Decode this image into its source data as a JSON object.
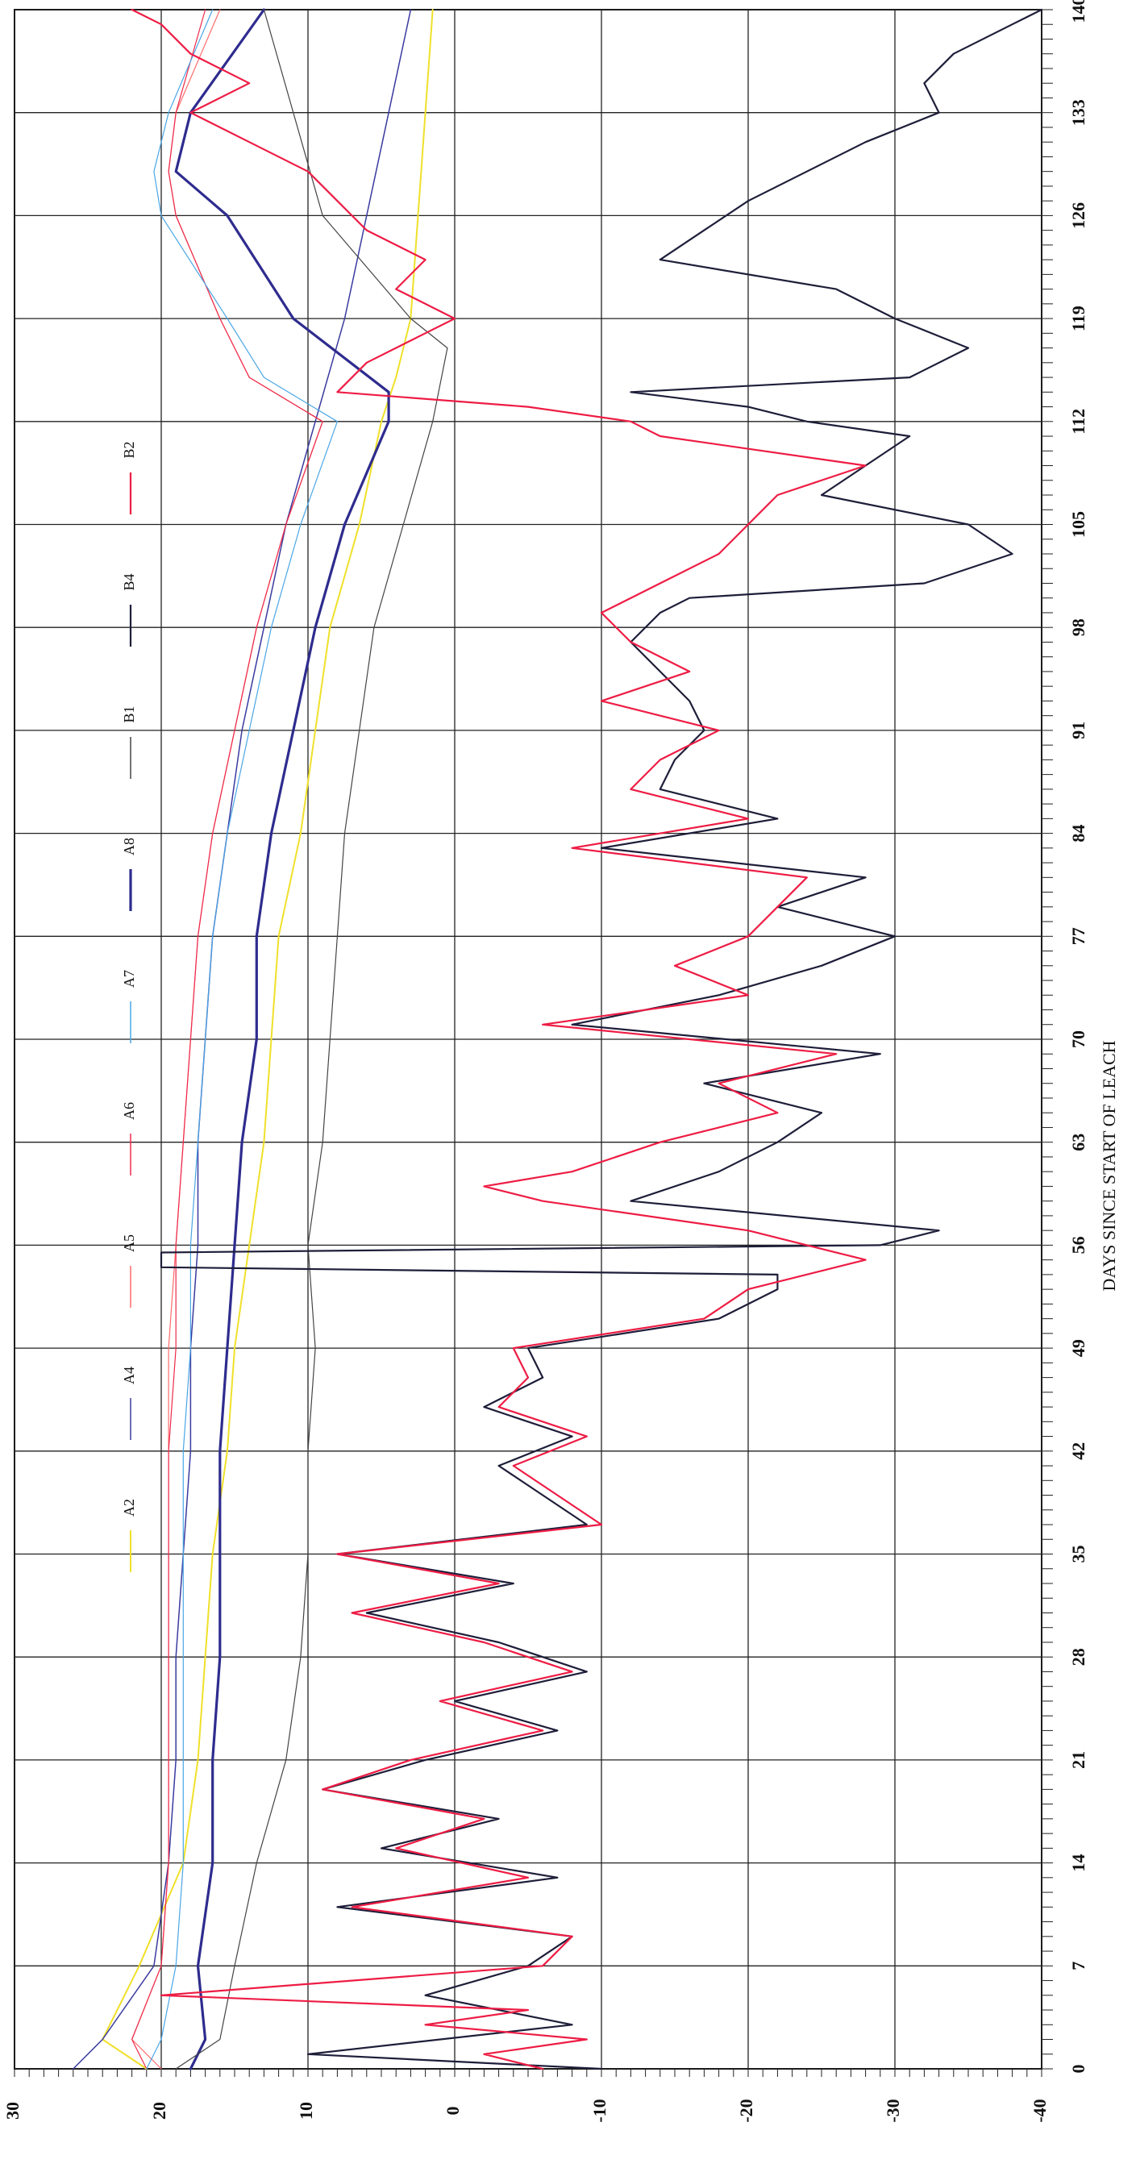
{
  "chart_data": {
    "type": "line",
    "orientation": "rotated-90",
    "xlabel": "DAYS SINCE START OF LEACH",
    "ylabel": "",
    "xlim": [
      0,
      140
    ],
    "ylim": [
      -40,
      30
    ],
    "x_ticks": [
      "0",
      "7",
      "14",
      "21",
      "28",
      "35",
      "42",
      "49",
      "56",
      "63",
      "70",
      "77",
      "84",
      "91",
      "98",
      "105",
      "112",
      "119",
      "126",
      "133",
      "140"
    ],
    "y_ticks": [
      "30",
      "20",
      "10",
      "0",
      "-10",
      "-20",
      "-30",
      "-40"
    ],
    "grid": true,
    "legend": "left",
    "series": [
      {
        "name": "A2",
        "color": "#f0e02a",
        "stroke": 2,
        "x": [
          0,
          2,
          7,
          14,
          21,
          28,
          35,
          42,
          49,
          56,
          63,
          70,
          77,
          84,
          91,
          98,
          105,
          112,
          115,
          119,
          126,
          133,
          140
        ],
        "y": [
          21,
          24,
          21.5,
          18.5,
          17.5,
          17,
          16.5,
          15.5,
          15,
          14,
          13,
          12.5,
          12,
          10.5,
          9.5,
          8.5,
          6.5,
          5,
          4,
          3,
          2.5,
          2,
          1.5
        ]
      },
      {
        "name": "A4",
        "color": "#3a3aa0",
        "stroke": 1.5,
        "x": [
          0,
          2,
          7,
          14,
          21,
          28,
          35,
          42,
          49,
          56,
          63,
          70,
          77,
          84,
          91,
          98,
          105,
          112,
          119,
          126,
          133,
          140
        ],
        "y": [
          26,
          24,
          20.5,
          19.5,
          19,
          19,
          18.5,
          18,
          18,
          17.5,
          17.5,
          17,
          16.5,
          15.5,
          14.5,
          13,
          11.5,
          9.5,
          7.5,
          6,
          4.5,
          3
        ]
      },
      {
        "name": "A5",
        "color": "#ff6a6a",
        "stroke": 1.2,
        "x": [
          0,
          2,
          7,
          14,
          21,
          28,
          35,
          42,
          49,
          56,
          63,
          70,
          77,
          84,
          91,
          98,
          105,
          112,
          115,
          119,
          126,
          129,
          133,
          140
        ],
        "y": [
          20,
          22,
          20,
          19.5,
          19.5,
          19.5,
          19.5,
          19.5,
          19.5,
          19,
          18.5,
          18,
          17.5,
          16.5,
          15,
          13.5,
          11.5,
          9,
          14,
          16,
          19,
          19.5,
          19,
          16
        ]
      },
      {
        "name": "A6",
        "color": "#ee2a4a",
        "stroke": 1.2,
        "x": [
          0,
          2,
          7,
          14,
          21,
          28,
          35,
          42,
          49,
          56,
          63,
          70,
          77,
          84,
          91,
          98,
          105,
          112,
          115,
          119,
          126,
          129,
          133,
          140
        ],
        "y": [
          21,
          22,
          20,
          19.5,
          19.5,
          19.5,
          19.5,
          19.5,
          19,
          19,
          18.5,
          18,
          17.5,
          16.5,
          15,
          13.5,
          11.5,
          9,
          14,
          16,
          19,
          19.5,
          19,
          17
        ]
      },
      {
        "name": "A7",
        "color": "#4aa6e6",
        "stroke": 1.2,
        "x": [
          0,
          2,
          7,
          14,
          21,
          28,
          35,
          42,
          49,
          56,
          63,
          70,
          77,
          84,
          91,
          98,
          105,
          112,
          115,
          119,
          126,
          129,
          133,
          140
        ],
        "y": [
          21,
          20,
          19,
          18.5,
          18.5,
          18.5,
          18.5,
          18.5,
          18,
          18,
          17.5,
          17,
          16.5,
          15.5,
          14,
          12.5,
          10.5,
          8,
          13,
          15.5,
          20,
          20.5,
          19.5,
          16.5
        ]
      },
      {
        "name": "A8",
        "color": "#2e2c8e",
        "stroke": 3.2,
        "x": [
          0,
          2,
          7,
          14,
          21,
          28,
          35,
          42,
          49,
          56,
          63,
          70,
          77,
          84,
          91,
          98,
          105,
          112,
          114,
          119,
          126,
          129,
          133,
          140
        ],
        "y": [
          18,
          17,
          17.5,
          16.5,
          16.5,
          16,
          16,
          16,
          15.5,
          15,
          14.5,
          13.5,
          13.5,
          12.5,
          11,
          9.5,
          7.5,
          4.5,
          4.5,
          11,
          15.5,
          19,
          18,
          13
        ]
      },
      {
        "name": "B1",
        "color": "#444444",
        "stroke": 1.2,
        "x": [
          0,
          2,
          7,
          14,
          21,
          28,
          35,
          42,
          49,
          56,
          63,
          70,
          77,
          84,
          91,
          98,
          105,
          112,
          117,
          119,
          126,
          133,
          140
        ],
        "y": [
          19,
          16,
          15,
          13.5,
          11.5,
          10.5,
          10,
          10,
          9.5,
          10,
          9,
          8.5,
          8,
          7.5,
          6.5,
          5.5,
          3.5,
          1.5,
          0.5,
          3,
          9,
          11,
          13
        ]
      },
      {
        "name": "B4",
        "color": "#1e1e3a",
        "stroke": 2.2,
        "x": [
          0,
          1,
          3,
          5,
          7,
          9,
          11,
          13,
          15,
          17,
          19,
          21,
          23,
          25,
          27,
          29,
          31,
          33,
          35,
          37,
          39,
          41,
          43,
          45,
          47,
          49,
          51,
          53,
          54,
          54.5,
          55.5,
          56,
          57,
          59,
          61,
          63,
          65,
          67,
          69,
          71,
          73,
          75,
          77,
          79,
          81,
          83,
          85,
          87,
          89,
          91,
          93,
          95,
          97,
          99,
          100,
          101,
          103,
          105,
          107,
          109,
          111,
          112,
          113,
          114,
          115,
          117,
          119,
          121,
          123,
          125,
          127,
          129,
          131,
          133,
          135,
          137,
          139,
          140
        ],
        "y": [
          -10,
          10,
          -8,
          2,
          -5,
          -8,
          8,
          -7,
          5,
          -3,
          9,
          2,
          -7,
          0,
          -9,
          -3,
          6,
          -4,
          8,
          -9,
          -6,
          -3,
          -8,
          -2,
          -6,
          -5,
          -18,
          -22,
          -22,
          20,
          20,
          -29,
          -33,
          -12,
          -18,
          -22,
          -25,
          -17,
          -29,
          -8,
          -18,
          -25,
          -30,
          -22,
          -28,
          -10,
          -22,
          -14,
          -15,
          -17,
          -16,
          -14,
          -12,
          -14,
          -16,
          -32,
          -38,
          -35,
          -25,
          -28,
          -31,
          -24,
          -20,
          -12,
          -31,
          -35,
          -30,
          -26,
          -14,
          -17,
          -20,
          -24,
          -28,
          -33,
          -32,
          -34,
          -38,
          -40
        ]
      },
      {
        "name": "B2",
        "color": "#ee1c44",
        "stroke": 2.2,
        "x": [
          0,
          1,
          2,
          3,
          4,
          5,
          7,
          9,
          11,
          13,
          15,
          17,
          19,
          21,
          23,
          25,
          27,
          29,
          31,
          33,
          35,
          37,
          39,
          41,
          43,
          45,
          47,
          49,
          51,
          53,
          55,
          57,
          59,
          60,
          61,
          63,
          65,
          67,
          69,
          71,
          73,
          75,
          77,
          79,
          81,
          83,
          85,
          87,
          89,
          91,
          93,
          95,
          97,
          99,
          101,
          103,
          105,
          107,
          109,
          111,
          112,
          113,
          114,
          116,
          118,
          119,
          121,
          123,
          125,
          127,
          129,
          131,
          133,
          135,
          137,
          139,
          140
        ],
        "y": [
          -6,
          -2,
          -9,
          2,
          -5,
          20,
          -6,
          -8,
          7,
          -5,
          4,
          -2,
          9,
          3,
          -6,
          1,
          -8,
          -2,
          7,
          -3,
          8,
          -10,
          -7,
          -4,
          -9,
          -3,
          -5,
          -4,
          -17,
          -20,
          -28,
          -20,
          -6,
          -2,
          -8,
          -14,
          -22,
          -18,
          -26,
          -6,
          -20,
          -15,
          -20,
          -22,
          -24,
          -8,
          -20,
          -12,
          -14,
          -18,
          -10,
          -16,
          -12,
          -10,
          -14,
          -18,
          -20,
          -22,
          -28,
          -14,
          -12,
          -5,
          8,
          6,
          2,
          0,
          4,
          2,
          6,
          8,
          10,
          14,
          18,
          14,
          18,
          20,
          22
        ]
      }
    ]
  }
}
